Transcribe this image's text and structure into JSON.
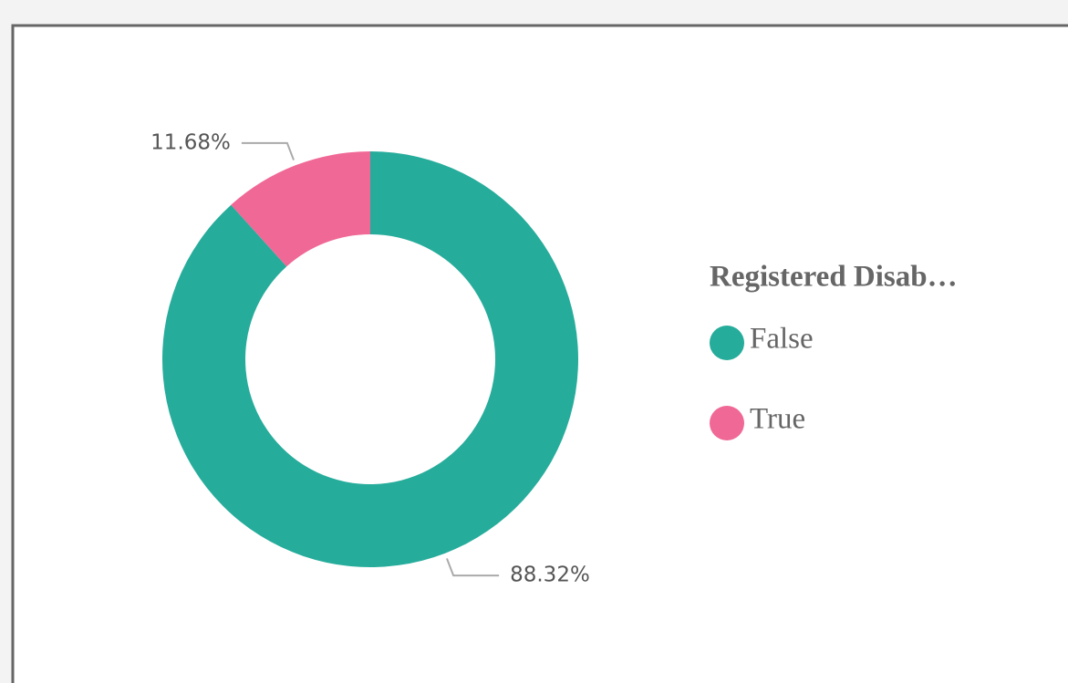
{
  "chart_data": {
    "type": "donut",
    "legend_title": "Registered Disab…",
    "categories": [
      "False",
      "True"
    ],
    "values": [
      88.32,
      11.68
    ],
    "value_labels": [
      "88.32%",
      "11.68%"
    ],
    "colors": [
      "#26ac9b",
      "#f06896"
    ],
    "legend": "right"
  }
}
